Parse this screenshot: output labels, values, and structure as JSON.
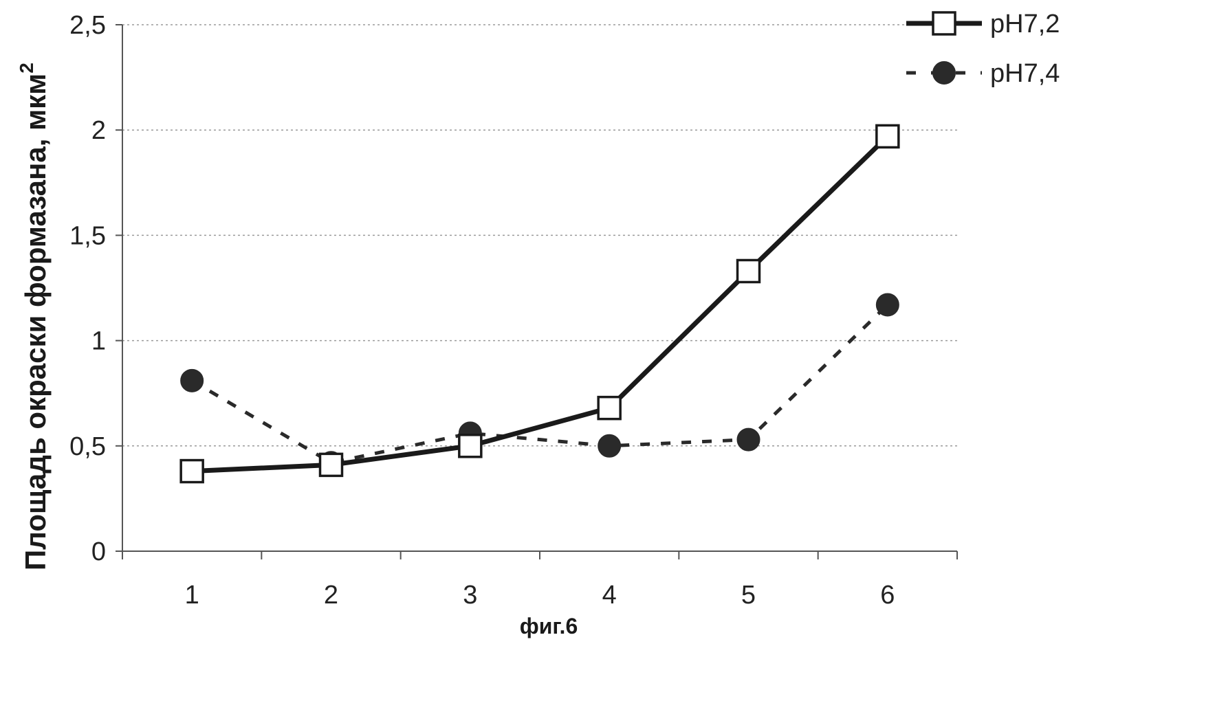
{
  "chart_data": {
    "type": "line",
    "ylabel": "Площадь окраски формазана, мкм",
    "ylabel_sup": "2",
    "caption": "фиг.6",
    "categories": [
      "1",
      "2",
      "3",
      "4",
      "5",
      "6"
    ],
    "ylim": [
      0,
      2.5
    ],
    "yticks": [
      0,
      0.5,
      1,
      1.5,
      2,
      2.5
    ],
    "ytick_labels": [
      "0",
      "0,5",
      "1",
      "1,5",
      "2",
      "2,5"
    ],
    "grid": "horizontal dashed",
    "legend_position": "top-right",
    "series": [
      {
        "name": "pH7,2",
        "style": "solid",
        "marker": "open-square",
        "color": "#1a1a1a",
        "values": [
          0.38,
          0.41,
          0.5,
          0.68,
          1.33,
          1.97
        ]
      },
      {
        "name": "pH7,4",
        "style": "dashed",
        "marker": "filled-circle",
        "color": "#2a2a2a",
        "values": [
          0.81,
          0.42,
          0.56,
          0.5,
          0.53,
          1.17
        ]
      }
    ]
  }
}
